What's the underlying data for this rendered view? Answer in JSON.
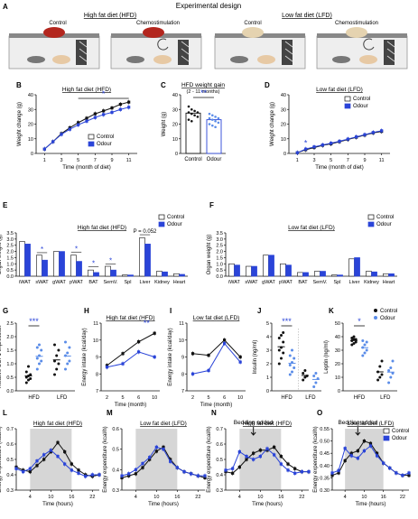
{
  "figure": {
    "colors": {
      "control": "#111111",
      "odour": "#2a44d8",
      "odour_light": "#5a8ce8",
      "shade": "#d6d6d6",
      "sig": "#2a44d8",
      "axis": "#111111"
    },
    "panel_letters": [
      "A",
      "B",
      "C",
      "D",
      "E",
      "F",
      "G",
      "H",
      "I",
      "J",
      "K",
      "L",
      "M",
      "N",
      "O"
    ],
    "panel_a": {
      "title": "Experimental design",
      "hfd_header": "High fat diet (HFD)",
      "lfd_header": "Low fat diet (LFD)",
      "cage_labels": [
        "Control",
        "Chemostimulation",
        "Control",
        "Chemostimulation"
      ]
    },
    "legend_labels": [
      "Control",
      "Odour"
    ]
  },
  "chart_data": [
    {
      "panel": "B",
      "type": "line",
      "title": "High fat diet (HFD)",
      "xlabel": "Time (month of diet)",
      "ylabel": "Weight change (g)",
      "xlim": [
        0,
        12
      ],
      "ylim": [
        0,
        40
      ],
      "xticks": [
        1,
        3,
        5,
        7,
        9,
        11
      ],
      "yticks": [
        0,
        10,
        20,
        30,
        40
      ],
      "x": [
        1,
        2,
        3,
        4,
        5,
        6,
        7,
        8,
        9,
        10,
        11
      ],
      "series": [
        {
          "name": "Control",
          "values": [
            3,
            8,
            13.5,
            17.5,
            21,
            24,
            27,
            29,
            31,
            33.5,
            35
          ]
        },
        {
          "name": "Odour",
          "values": [
            3,
            8,
            13,
            16.5,
            19.5,
            22,
            24.5,
            26.5,
            28,
            30,
            31.5
          ]
        }
      ],
      "significance": "*",
      "legend": "bottom-right"
    },
    {
      "panel": "C",
      "type": "bar",
      "title": "HFD weight gain",
      "subtitle": "(2 - 11 months)",
      "ylabel": "Weight (g)",
      "categories": [
        "Control",
        "Odour"
      ],
      "values": [
        27.5,
        23
      ],
      "ylim": [
        0,
        40
      ],
      "yticks": [
        0,
        10,
        20,
        30,
        40
      ],
      "points": [
        [
          32,
          30,
          29,
          28,
          28,
          27,
          26,
          25,
          23,
          22
        ],
        [
          27,
          26,
          25,
          24,
          24,
          23,
          22,
          21,
          20,
          19,
          18
        ]
      ],
      "significance": "**"
    },
    {
      "panel": "D",
      "type": "line",
      "title": "Low fat diet (LFD)",
      "xlabel": "Time (month of diet)",
      "ylabel": "Weight change (g)",
      "xlim": [
        0,
        12
      ],
      "ylim": [
        0,
        40
      ],
      "xticks": [
        1,
        3,
        5,
        7,
        9,
        11
      ],
      "yticks": [
        0,
        10,
        20,
        30,
        40
      ],
      "x": [
        1,
        2,
        3,
        4,
        5,
        6,
        7,
        8,
        9,
        10,
        11
      ],
      "series": [
        {
          "name": "Control",
          "values": [
            0.5,
            2.5,
            4,
            5.5,
            6.5,
            8,
            9.5,
            11,
            12.5,
            14,
            15
          ]
        },
        {
          "name": "Odour",
          "values": [
            0.5,
            3,
            4.5,
            5.8,
            7,
            8.3,
            9.8,
            11.3,
            12.8,
            14.3,
            15.5
          ]
        }
      ],
      "significance": "*",
      "legend": "top-right"
    },
    {
      "panel": "E",
      "type": "bar",
      "title": "High fat diet (HFD)",
      "ylabel": "Organ weight (g)",
      "ylim": [
        0,
        3.5
      ],
      "yticks": [
        0.0,
        0.5,
        1.0,
        1.5,
        2.0,
        2.5,
        3.0,
        3.5
      ],
      "categories": [
        "iWAT",
        "sWAT",
        "gWAT",
        "pWAT",
        "BAT",
        "SemV.",
        "Spl",
        "Liver",
        "Kidney",
        "Heart"
      ],
      "series": [
        {
          "name": "Control",
          "values": [
            2.8,
            1.7,
            2.0,
            1.7,
            0.5,
            0.8,
            0.1,
            3.1,
            0.4,
            0.2
          ]
        },
        {
          "name": "Odour",
          "values": [
            2.6,
            1.3,
            2.0,
            1.2,
            0.3,
            0.5,
            0.1,
            2.6,
            0.35,
            0.15
          ]
        }
      ],
      "annotations": [
        "P = 0.052",
        "*",
        "*",
        "*",
        "*"
      ],
      "legend": "top-right"
    },
    {
      "panel": "F",
      "type": "bar",
      "title": "Low fat diet (LFD)",
      "ylabel": "Organ weight (g)",
      "ylim": [
        0,
        3.5
      ],
      "yticks": [
        0.0,
        0.5,
        1.0,
        1.5,
        2.0,
        2.5,
        3.0,
        3.5
      ],
      "categories": [
        "iWAT",
        "sWAT",
        "gWAT",
        "pWAT",
        "BAT",
        "SemV.",
        "Spl",
        "Liver",
        "Kidney",
        "Heart"
      ],
      "series": [
        {
          "name": "Control",
          "values": [
            1.0,
            0.8,
            1.7,
            1.0,
            0.3,
            0.4,
            0.1,
            1.4,
            0.4,
            0.2
          ]
        },
        {
          "name": "Odour",
          "values": [
            0.9,
            0.8,
            1.7,
            0.9,
            0.3,
            0.4,
            0.1,
            1.5,
            0.35,
            0.2
          ]
        }
      ],
      "legend": "top-right"
    },
    {
      "panel": "G",
      "type": "scatter",
      "ylabel": "Relative UCP1 expression",
      "categories": [
        "HFD",
        "LFD"
      ],
      "ylim": [
        0,
        2.5
      ],
      "yticks": [
        0.0,
        0.5,
        1.0,
        1.5,
        2.0,
        2.5
      ],
      "groups": [
        {
          "name": "Control",
          "x": "HFD",
          "values": [
            0.3,
            0.4,
            0.45,
            0.5,
            0.55,
            0.6,
            0.7,
            0.9
          ]
        },
        {
          "name": "Odour",
          "x": "HFD",
          "values": [
            0.8,
            1.0,
            1.1,
            1.2,
            1.3,
            1.5,
            1.6,
            1.7
          ]
        },
        {
          "name": "Control",
          "x": "LFD",
          "values": [
            0.6,
            0.8,
            1.0,
            1.1,
            1.3,
            1.5,
            1.7
          ]
        },
        {
          "name": "Odour",
          "x": "LFD",
          "values": [
            0.8,
            1.0,
            1.1,
            1.3,
            1.4,
            1.6,
            1.8
          ]
        }
      ],
      "significance": "***"
    },
    {
      "panel": "H",
      "type": "line",
      "title": "High fat diet (HFD)",
      "xlabel": "Time (month)",
      "ylabel": "Energy intake (kcal/day)",
      "categories": [
        "2",
        "5",
        "6",
        "10"
      ],
      "ylim": [
        7,
        11
      ],
      "yticks": [
        7,
        8,
        9,
        10,
        11
      ],
      "series": [
        {
          "name": "Control",
          "values": [
            8.5,
            9.2,
            9.9,
            10.4
          ]
        },
        {
          "name": "Odour",
          "values": [
            8.4,
            8.6,
            9.3,
            9.0
          ]
        }
      ],
      "significance": "**"
    },
    {
      "panel": "I",
      "type": "line",
      "title": "Low fat diet (LFD)",
      "xlabel": "Time (month)",
      "ylabel": "Energy intake (kcal/day)",
      "categories": [
        "2",
        "5",
        "6",
        "10"
      ],
      "ylim": [
        7,
        11
      ],
      "yticks": [
        7,
        8,
        9,
        10,
        11
      ],
      "series": [
        {
          "name": "Control",
          "values": [
            9.2,
            9.1,
            10.0,
            9.0
          ]
        },
        {
          "name": "Odour",
          "values": [
            8.0,
            8.2,
            9.8,
            8.7
          ]
        }
      ]
    },
    {
      "panel": "J",
      "type": "scatter",
      "ylabel": "Insulin (ng/ml)",
      "categories": [
        "HFD",
        "LFD"
      ],
      "ylim": [
        0,
        5
      ],
      "yticks": [
        0,
        1,
        2,
        3,
        4,
        5
      ],
      "groups": [
        {
          "name": "Control",
          "x": "HFD",
          "values": [
            2.0,
            2.4,
            2.8,
            3.0,
            3.2,
            3.6,
            3.9,
            4.1,
            4.3
          ]
        },
        {
          "name": "Odour",
          "x": "HFD",
          "values": [
            1.2,
            1.4,
            1.7,
            1.9,
            2.1,
            2.4,
            2.6,
            3.0
          ]
        },
        {
          "name": "Control",
          "x": "LFD",
          "values": [
            0.8,
            1.0,
            1.1,
            1.3,
            1.5
          ]
        },
        {
          "name": "Odour",
          "x": "LFD",
          "values": [
            0.3,
            0.6,
            0.9,
            1.1,
            1.3
          ]
        }
      ],
      "significance": "***"
    },
    {
      "panel": "K",
      "type": "scatter",
      "ylabel": "Leptin (ng/ml)",
      "categories": [
        "HFD",
        "LFD"
      ],
      "ylim": [
        0,
        50
      ],
      "yticks": [
        0,
        10,
        20,
        30,
        40,
        50
      ],
      "groups": [
        {
          "name": "Control",
          "x": "HFD",
          "values": [
            34,
            35,
            36,
            37,
            38,
            38,
            39,
            40
          ]
        },
        {
          "name": "Odour",
          "x": "HFD",
          "values": [
            26,
            28,
            30,
            32,
            34,
            36,
            37
          ]
        },
        {
          "name": "Control",
          "x": "LFD",
          "values": [
            8,
            10,
            12,
            14,
            18,
            22
          ]
        },
        {
          "name": "Odour",
          "x": "LFD",
          "values": [
            6,
            10,
            13,
            15,
            17,
            22
          ]
        }
      ],
      "significance": "*",
      "legend": "top-right"
    },
    {
      "panel": "L",
      "type": "line",
      "title": "High fat diet (HFD)",
      "xlabel": "Time (hours)",
      "ylabel": "Energy expenditure (kcal/h)",
      "xticks": [
        4,
        10,
        16,
        22
      ],
      "ylim": [
        0.3,
        0.7
      ],
      "yticks": [
        0.3,
        0.4,
        0.5,
        0.6,
        0.7
      ],
      "shaded_x": [
        4,
        16
      ],
      "x": [
        0,
        2,
        4,
        6,
        8,
        10,
        12,
        14,
        16,
        18,
        20,
        22,
        24
      ],
      "series": [
        {
          "name": "Control",
          "values": [
            0.45,
            0.43,
            0.42,
            0.46,
            0.5,
            0.55,
            0.61,
            0.55,
            0.47,
            0.43,
            0.4,
            0.39,
            0.4
          ]
        },
        {
          "name": "Odour",
          "values": [
            0.44,
            0.42,
            0.44,
            0.49,
            0.53,
            0.56,
            0.52,
            0.47,
            0.43,
            0.41,
            0.39,
            0.4,
            0.4
          ]
        }
      ]
    },
    {
      "panel": "M",
      "type": "line",
      "title": "Low fat diet (LFD)",
      "xlabel": "Time (hours)",
      "ylabel": "Energy expenditure (kcal/h)",
      "xticks": [
        4,
        10,
        16,
        22
      ],
      "ylim": [
        0.3,
        0.6
      ],
      "yticks": [
        0.3,
        0.4,
        0.5,
        0.6
      ],
      "shaded_x": [
        4,
        16
      ],
      "x": [
        0,
        2,
        4,
        6,
        8,
        10,
        12,
        14,
        16,
        18,
        20,
        22,
        24
      ],
      "series": [
        {
          "name": "Control",
          "values": [
            0.36,
            0.37,
            0.38,
            0.41,
            0.45,
            0.49,
            0.51,
            0.45,
            0.41,
            0.39,
            0.38,
            0.37,
            0.36
          ]
        },
        {
          "name": "Odour",
          "values": [
            0.37,
            0.38,
            0.4,
            0.43,
            0.46,
            0.51,
            0.5,
            0.44,
            0.41,
            0.39,
            0.38,
            0.37,
            0.37
          ]
        }
      ]
    },
    {
      "panel": "N",
      "type": "line",
      "title": "High fat diet (HFD)",
      "xlabel": "Time (hours)",
      "ylabel": "Energy expenditure (kcal/h)",
      "xticks": [
        4,
        10,
        16,
        22
      ],
      "ylim": [
        0.3,
        0.7
      ],
      "yticks": [
        0.3,
        0.4,
        0.5,
        0.6,
        0.7
      ],
      "shaded_x": [
        4,
        16
      ],
      "annotation": "Bedding added",
      "x": [
        0,
        2,
        4,
        6,
        8,
        10,
        12,
        14,
        16,
        18,
        20,
        22,
        24
      ],
      "series": [
        {
          "name": "Control",
          "values": [
            0.42,
            0.41,
            0.45,
            0.5,
            0.54,
            0.56,
            0.56,
            0.58,
            0.52,
            0.47,
            0.44,
            0.42,
            0.42
          ]
        },
        {
          "name": "Odour",
          "values": [
            0.43,
            0.44,
            0.55,
            0.52,
            0.5,
            0.52,
            0.57,
            0.53,
            0.47,
            0.43,
            0.41,
            0.42,
            0.42
          ]
        }
      ]
    },
    {
      "panel": "O",
      "type": "line",
      "title": "Low fat diet (LFD)",
      "xlabel": "Time (hours)",
      "ylabel": "Energy expenditure (kcal/h)",
      "xticks": [
        4,
        10,
        16,
        22
      ],
      "ylim": [
        0.3,
        0.55
      ],
      "yticks": [
        0.3,
        0.35,
        0.4,
        0.45,
        0.5,
        0.55
      ],
      "shaded_x": [
        4,
        16
      ],
      "annotation": "Bedding added",
      "x": [
        0,
        2,
        4,
        6,
        8,
        10,
        12,
        14,
        16,
        18,
        20,
        22,
        24
      ],
      "series": [
        {
          "name": "Control",
          "values": [
            0.36,
            0.37,
            0.42,
            0.45,
            0.46,
            0.5,
            0.49,
            0.45,
            0.41,
            0.39,
            0.37,
            0.36,
            0.36
          ]
        },
        {
          "name": "Odour",
          "values": [
            0.37,
            0.38,
            0.47,
            0.44,
            0.43,
            0.46,
            0.48,
            0.44,
            0.41,
            0.39,
            0.37,
            0.36,
            0.37
          ]
        }
      ],
      "legend": "top-right"
    }
  ]
}
